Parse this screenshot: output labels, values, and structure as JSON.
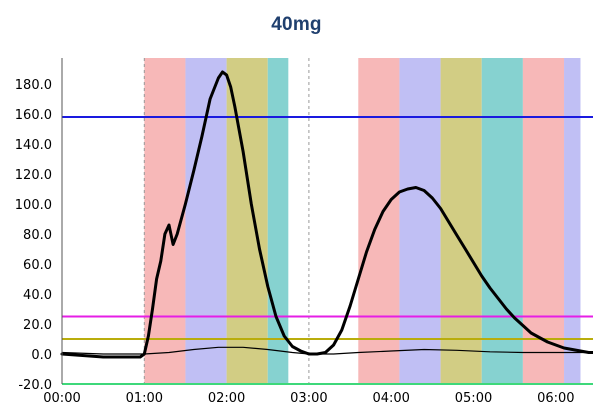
{
  "chart_data": {
    "type": "line",
    "title": "40mg",
    "xlabel": "",
    "ylabel": "",
    "x_unit": "hours",
    "xlim": [
      0,
      6.5
    ],
    "ylim": [
      -20,
      190
    ],
    "x_ticks": [
      {
        "value": 0,
        "label": "00:00"
      },
      {
        "value": 1,
        "label": "01:00"
      },
      {
        "value": 2,
        "label": "02:00"
      },
      {
        "value": 3,
        "label": "03:00"
      },
      {
        "value": 4,
        "label": "04:00"
      },
      {
        "value": 5,
        "label": "05:00"
      },
      {
        "value": 6,
        "label": "06:00"
      }
    ],
    "y_ticks": [
      {
        "value": 180,
        "label": "180.0"
      },
      {
        "value": 160,
        "label": "160.0"
      },
      {
        "value": 140,
        "label": "140.0"
      },
      {
        "value": 120,
        "label": "120.0"
      },
      {
        "value": 100,
        "label": "100.0"
      },
      {
        "value": 80,
        "label": "80.0"
      },
      {
        "value": 60,
        "label": "60.0"
      },
      {
        "value": 40,
        "label": "40.0"
      },
      {
        "value": 20,
        "label": "20.0"
      },
      {
        "value": 0,
        "label": "0.0"
      },
      {
        "value": -20,
        "label": "-20.0"
      }
    ],
    "vertical_gridlines": [
      1,
      3
    ],
    "bands": [
      {
        "x0": 1.0,
        "x1": 1.5,
        "color": "#f7b8b8"
      },
      {
        "x0": 1.5,
        "x1": 2.0,
        "color": "#c0bff4"
      },
      {
        "x0": 2.0,
        "x1": 2.5,
        "color": "#d2cd84"
      },
      {
        "x0": 2.5,
        "x1": 2.75,
        "color": "#86d2d0"
      },
      {
        "x0": 3.6,
        "x1": 4.1,
        "color": "#f7b8b8"
      },
      {
        "x0": 4.1,
        "x1": 4.6,
        "color": "#c0bff4"
      },
      {
        "x0": 4.6,
        "x1": 5.1,
        "color": "#d2cd84"
      },
      {
        "x0": 5.1,
        "x1": 5.6,
        "color": "#86d2d0"
      },
      {
        "x0": 5.6,
        "x1": 6.1,
        "color": "#f7b8b8"
      },
      {
        "x0": 6.1,
        "x1": 6.3,
        "color": "#c0bff4"
      }
    ],
    "horizontal_lines": [
      {
        "y": 158,
        "color": "#1a1adf"
      },
      {
        "y": 25,
        "color": "#e61ee6"
      },
      {
        "y": 10,
        "color": "#b9ad0c"
      },
      {
        "y": -20,
        "color": "#3ed87a"
      }
    ],
    "series": [
      {
        "color": "#000000",
        "width": 3,
        "points": [
          [
            0.0,
            0
          ],
          [
            0.5,
            -2
          ],
          [
            0.95,
            -2
          ],
          [
            1.0,
            0
          ],
          [
            1.05,
            12
          ],
          [
            1.1,
            30
          ],
          [
            1.15,
            50
          ],
          [
            1.2,
            62
          ],
          [
            1.25,
            80
          ],
          [
            1.3,
            86
          ],
          [
            1.35,
            73
          ],
          [
            1.4,
            80
          ],
          [
            1.5,
            100
          ],
          [
            1.6,
            122
          ],
          [
            1.7,
            145
          ],
          [
            1.8,
            170
          ],
          [
            1.9,
            184
          ],
          [
            1.95,
            188
          ],
          [
            2.0,
            186
          ],
          [
            2.05,
            178
          ],
          [
            2.1,
            165
          ],
          [
            2.2,
            135
          ],
          [
            2.3,
            100
          ],
          [
            2.4,
            70
          ],
          [
            2.5,
            45
          ],
          [
            2.6,
            25
          ],
          [
            2.7,
            12
          ],
          [
            2.8,
            5
          ],
          [
            2.9,
            2
          ],
          [
            3.0,
            0
          ],
          [
            3.1,
            0
          ],
          [
            3.2,
            1
          ],
          [
            3.3,
            6
          ],
          [
            3.4,
            16
          ],
          [
            3.5,
            32
          ],
          [
            3.6,
            50
          ],
          [
            3.7,
            68
          ],
          [
            3.8,
            83
          ],
          [
            3.9,
            95
          ],
          [
            4.0,
            103
          ],
          [
            4.1,
            108
          ],
          [
            4.2,
            110
          ],
          [
            4.3,
            111
          ],
          [
            4.4,
            109
          ],
          [
            4.5,
            104
          ],
          [
            4.6,
            97
          ],
          [
            4.7,
            88
          ],
          [
            4.8,
            79
          ],
          [
            4.9,
            70
          ],
          [
            5.0,
            61
          ],
          [
            5.1,
            52
          ],
          [
            5.2,
            44
          ],
          [
            5.3,
            37
          ],
          [
            5.4,
            30
          ],
          [
            5.5,
            24
          ],
          [
            5.6,
            19
          ],
          [
            5.7,
            14
          ],
          [
            5.8,
            11
          ],
          [
            5.9,
            8
          ],
          [
            6.0,
            6
          ],
          [
            6.1,
            4
          ],
          [
            6.2,
            3
          ],
          [
            6.3,
            2
          ],
          [
            6.4,
            1
          ],
          [
            6.5,
            1
          ]
        ]
      },
      {
        "color": "#000000",
        "width": 1.2,
        "points": [
          [
            0.0,
            1
          ],
          [
            0.5,
            0
          ],
          [
            1.0,
            0
          ],
          [
            1.3,
            1
          ],
          [
            1.6,
            3
          ],
          [
            1.9,
            4.5
          ],
          [
            2.2,
            4.5
          ],
          [
            2.5,
            3
          ],
          [
            2.8,
            1
          ],
          [
            3.0,
            0
          ],
          [
            3.3,
            0
          ],
          [
            3.6,
            1
          ],
          [
            4.0,
            2
          ],
          [
            4.4,
            3
          ],
          [
            4.8,
            2.5
          ],
          [
            5.2,
            1.5
          ],
          [
            5.6,
            1
          ],
          [
            6.0,
            1
          ],
          [
            6.5,
            1
          ]
        ]
      }
    ]
  }
}
